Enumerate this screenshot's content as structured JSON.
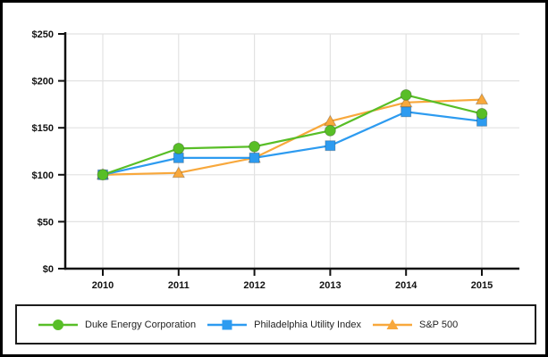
{
  "chart_data": {
    "type": "line",
    "title": "",
    "xlabel": "",
    "ylabel": "",
    "categories": [
      "2010",
      "2011",
      "2012",
      "2013",
      "2014",
      "2015"
    ],
    "series": [
      {
        "name": "Duke Energy Corporation",
        "marker": "circle",
        "color": "#58be27",
        "values": [
          100,
          128,
          130,
          147,
          185,
          165
        ]
      },
      {
        "name": "Philadelphia Utility Index",
        "marker": "square",
        "color": "#2d9bf0",
        "values": [
          100,
          118,
          118,
          131,
          167,
          157
        ]
      },
      {
        "name": "S&P 500",
        "marker": "triangle",
        "color": "#f8a83c",
        "values": [
          100,
          102,
          118,
          157,
          177,
          180
        ]
      }
    ],
    "ylim": [
      0,
      250
    ],
    "ytick_step": 50,
    "ytick_labels": [
      "$0",
      "$50",
      "$100",
      "$150",
      "$200",
      "$250"
    ],
    "grid": true,
    "legend_position": "bottom"
  },
  "colors": {
    "grid": "#e2e2e2",
    "axis": "#111111",
    "tick_label": "#111111",
    "background": "#ffffff",
    "outer_border": "#000000",
    "legend_border": "#1c1c1c"
  }
}
